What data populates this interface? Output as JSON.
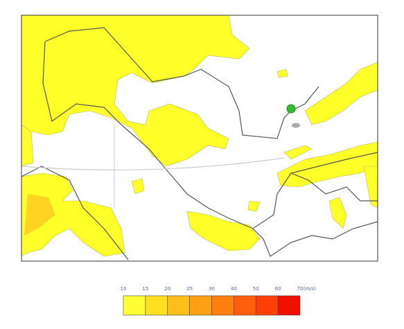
{
  "legend": {
    "ticks": [
      10,
      15,
      20,
      25,
      30,
      40,
      50,
      60,
      70
    ],
    "unit": "(m/s)",
    "colors": [
      "#ffff33",
      "#ffdf22",
      "#ffbf1a",
      "#ff9f14",
      "#ff7f10",
      "#ff5f0c",
      "#ff3f08",
      "#f01000"
    ]
  }
}
